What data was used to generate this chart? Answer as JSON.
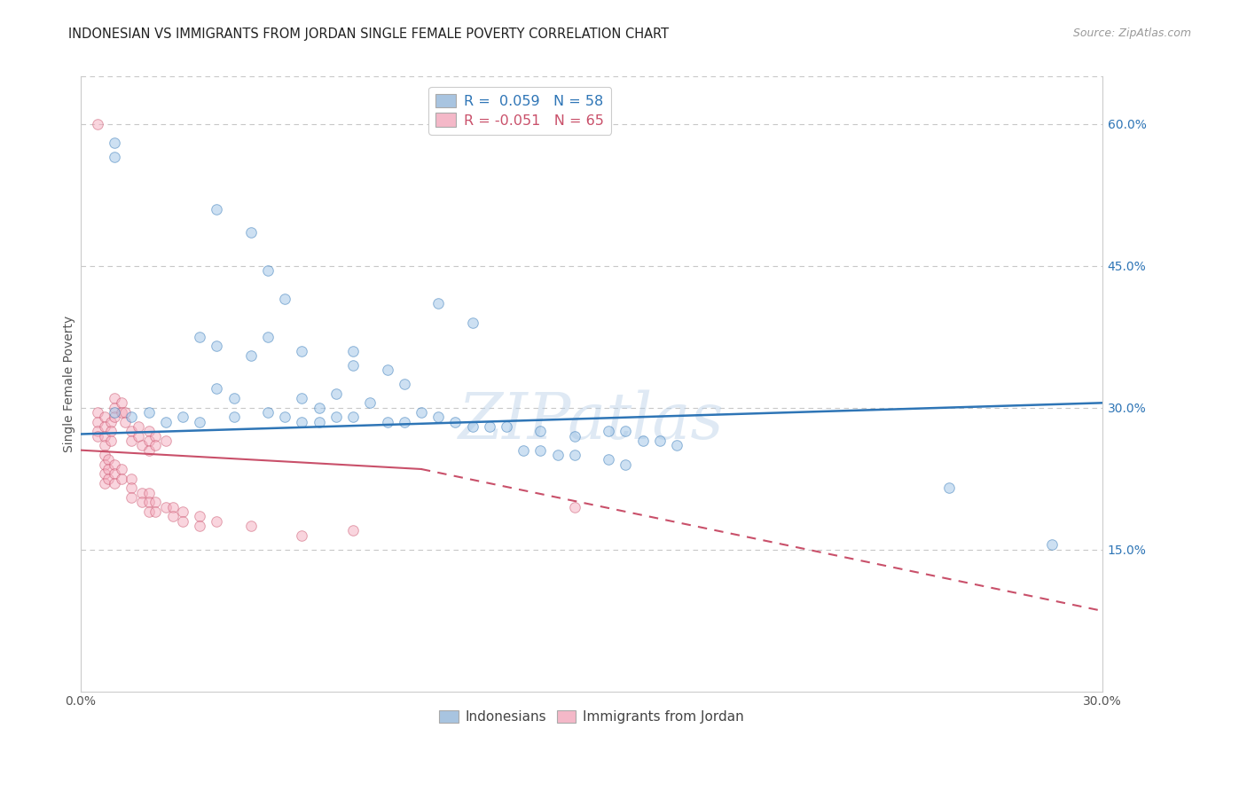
{
  "title": "INDONESIAN VS IMMIGRANTS FROM JORDAN SINGLE FEMALE POVERTY CORRELATION CHART",
  "source": "Source: ZipAtlas.com",
  "ylabel": "Single Female Poverty",
  "right_yticks": [
    "60.0%",
    "45.0%",
    "30.0%",
    "15.0%"
  ],
  "right_ytick_vals": [
    0.6,
    0.45,
    0.3,
    0.15
  ],
  "xmin": 0.0,
  "xmax": 0.3,
  "ymin": 0.0,
  "ymax": 0.65,
  "legend_color1": "#a8c4e0",
  "legend_color2": "#f4b8c8",
  "watermark": "ZIPatlas",
  "blue_scatter": [
    [
      0.01,
      0.58
    ],
    [
      0.01,
      0.565
    ],
    [
      0.04,
      0.51
    ],
    [
      0.05,
      0.485
    ],
    [
      0.055,
      0.445
    ],
    [
      0.06,
      0.415
    ],
    [
      0.035,
      0.375
    ],
    [
      0.04,
      0.365
    ],
    [
      0.055,
      0.375
    ],
    [
      0.05,
      0.355
    ],
    [
      0.065,
      0.36
    ],
    [
      0.08,
      0.36
    ],
    [
      0.08,
      0.345
    ],
    [
      0.09,
      0.34
    ],
    [
      0.095,
      0.325
    ],
    [
      0.105,
      0.41
    ],
    [
      0.115,
      0.39
    ],
    [
      0.04,
      0.32
    ],
    [
      0.045,
      0.31
    ],
    [
      0.065,
      0.31
    ],
    [
      0.07,
      0.3
    ],
    [
      0.075,
      0.315
    ],
    [
      0.085,
      0.305
    ],
    [
      0.01,
      0.295
    ],
    [
      0.015,
      0.29
    ],
    [
      0.02,
      0.295
    ],
    [
      0.025,
      0.285
    ],
    [
      0.03,
      0.29
    ],
    [
      0.035,
      0.285
    ],
    [
      0.045,
      0.29
    ],
    [
      0.055,
      0.295
    ],
    [
      0.06,
      0.29
    ],
    [
      0.065,
      0.285
    ],
    [
      0.07,
      0.285
    ],
    [
      0.075,
      0.29
    ],
    [
      0.08,
      0.29
    ],
    [
      0.09,
      0.285
    ],
    [
      0.095,
      0.285
    ],
    [
      0.1,
      0.295
    ],
    [
      0.105,
      0.29
    ],
    [
      0.11,
      0.285
    ],
    [
      0.115,
      0.28
    ],
    [
      0.12,
      0.28
    ],
    [
      0.125,
      0.28
    ],
    [
      0.135,
      0.275
    ],
    [
      0.145,
      0.27
    ],
    [
      0.155,
      0.275
    ],
    [
      0.16,
      0.275
    ],
    [
      0.165,
      0.265
    ],
    [
      0.17,
      0.265
    ],
    [
      0.175,
      0.26
    ],
    [
      0.13,
      0.255
    ],
    [
      0.135,
      0.255
    ],
    [
      0.14,
      0.25
    ],
    [
      0.145,
      0.25
    ],
    [
      0.155,
      0.245
    ],
    [
      0.16,
      0.24
    ],
    [
      0.255,
      0.215
    ],
    [
      0.285,
      0.155
    ]
  ],
  "pink_scatter": [
    [
      0.005,
      0.6
    ],
    [
      0.005,
      0.295
    ],
    [
      0.005,
      0.285
    ],
    [
      0.005,
      0.275
    ],
    [
      0.005,
      0.27
    ],
    [
      0.007,
      0.29
    ],
    [
      0.007,
      0.28
    ],
    [
      0.007,
      0.27
    ],
    [
      0.007,
      0.26
    ],
    [
      0.009,
      0.285
    ],
    [
      0.009,
      0.275
    ],
    [
      0.009,
      0.265
    ],
    [
      0.01,
      0.31
    ],
    [
      0.01,
      0.3
    ],
    [
      0.01,
      0.29
    ],
    [
      0.012,
      0.305
    ],
    [
      0.012,
      0.295
    ],
    [
      0.013,
      0.295
    ],
    [
      0.013,
      0.285
    ],
    [
      0.015,
      0.275
    ],
    [
      0.015,
      0.265
    ],
    [
      0.017,
      0.28
    ],
    [
      0.017,
      0.27
    ],
    [
      0.018,
      0.26
    ],
    [
      0.02,
      0.275
    ],
    [
      0.02,
      0.265
    ],
    [
      0.02,
      0.255
    ],
    [
      0.022,
      0.27
    ],
    [
      0.022,
      0.26
    ],
    [
      0.025,
      0.265
    ],
    [
      0.007,
      0.25
    ],
    [
      0.007,
      0.24
    ],
    [
      0.007,
      0.23
    ],
    [
      0.007,
      0.22
    ],
    [
      0.008,
      0.245
    ],
    [
      0.008,
      0.235
    ],
    [
      0.008,
      0.225
    ],
    [
      0.01,
      0.24
    ],
    [
      0.01,
      0.23
    ],
    [
      0.01,
      0.22
    ],
    [
      0.012,
      0.235
    ],
    [
      0.012,
      0.225
    ],
    [
      0.015,
      0.225
    ],
    [
      0.015,
      0.215
    ],
    [
      0.015,
      0.205
    ],
    [
      0.018,
      0.21
    ],
    [
      0.018,
      0.2
    ],
    [
      0.02,
      0.21
    ],
    [
      0.02,
      0.2
    ],
    [
      0.02,
      0.19
    ],
    [
      0.022,
      0.2
    ],
    [
      0.022,
      0.19
    ],
    [
      0.025,
      0.195
    ],
    [
      0.027,
      0.195
    ],
    [
      0.027,
      0.185
    ],
    [
      0.03,
      0.19
    ],
    [
      0.03,
      0.18
    ],
    [
      0.035,
      0.185
    ],
    [
      0.035,
      0.175
    ],
    [
      0.04,
      0.18
    ],
    [
      0.05,
      0.175
    ],
    [
      0.065,
      0.165
    ],
    [
      0.08,
      0.17
    ],
    [
      0.145,
      0.195
    ]
  ],
  "blue_line": {
    "x0": 0.0,
    "x1": 0.3,
    "y0": 0.272,
    "y1": 0.305
  },
  "pink_line_solid": {
    "x0": 0.0,
    "x1": 0.1,
    "y0": 0.255,
    "y1": 0.235
  },
  "pink_line_dash": {
    "x0": 0.1,
    "x1": 0.3,
    "y0": 0.235,
    "y1": 0.085
  },
  "scatter_size": 70,
  "scatter_alpha": 0.5,
  "blue_color": "#9DC3E6",
  "pink_color": "#F4ACBE",
  "blue_line_color": "#2E75B6",
  "pink_line_color": "#C9506A",
  "background_color": "#ffffff",
  "grid_color": "#c8c8c8"
}
